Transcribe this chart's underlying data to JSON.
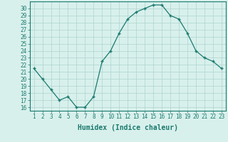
{
  "x": [
    1,
    2,
    3,
    4,
    5,
    6,
    7,
    8,
    9,
    10,
    11,
    12,
    13,
    14,
    15,
    16,
    17,
    18,
    19,
    20,
    21,
    22,
    23
  ],
  "y": [
    21.5,
    20.0,
    18.5,
    17.0,
    17.5,
    16.0,
    16.0,
    17.5,
    22.5,
    24.0,
    26.5,
    28.5,
    29.5,
    30.0,
    30.5,
    30.5,
    29.0,
    28.5,
    26.5,
    24.0,
    23.0,
    22.5,
    21.5
  ],
  "line_color": "#1a7a6e",
  "marker": "+",
  "markersize": 3.5,
  "linewidth": 0.9,
  "bg_color": "#d8f0ec",
  "grid_color": "#aed4ce",
  "xlabel": "Humidex (Indice chaleur)",
  "xlabel_fontsize": 7,
  "ylabel_ticks": [
    16,
    17,
    18,
    19,
    20,
    21,
    22,
    23,
    24,
    25,
    26,
    27,
    28,
    29,
    30
  ],
  "ylim": [
    15.5,
    31.0
  ],
  "xlim": [
    0.5,
    23.5
  ],
  "tick_fontsize": 5.5,
  "axis_color": "#1a7a6e"
}
